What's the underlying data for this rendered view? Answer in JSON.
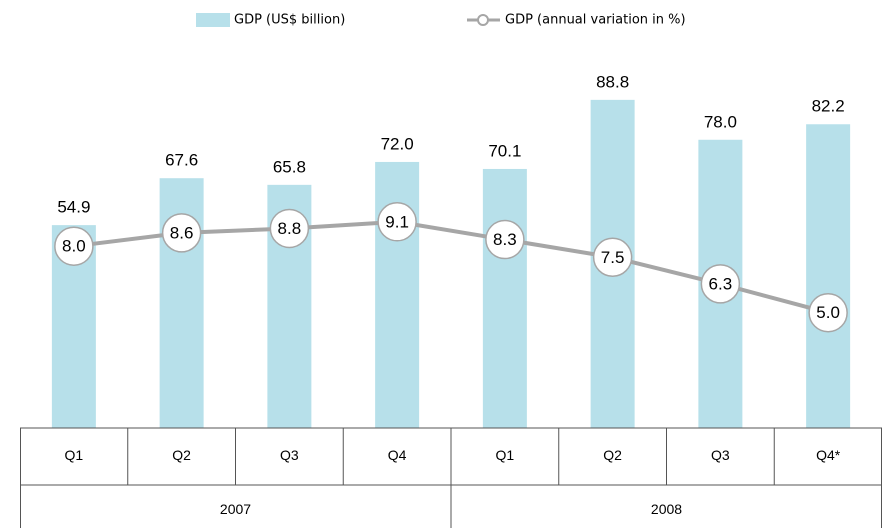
{
  "chart_data": {
    "type": "bar_line",
    "groups": [
      {
        "name": "2007",
        "categories": [
          "Q1",
          "Q2",
          "Q3",
          "Q4"
        ]
      },
      {
        "name": "2008",
        "categories": [
          "Q1",
          "Q2",
          "Q3",
          "Q4*"
        ]
      }
    ],
    "series": [
      {
        "name": "GDP (US$ billion)",
        "type": "bar",
        "color": "#b7e0ea",
        "values": [
          54.9,
          67.6,
          65.8,
          72.0,
          70.1,
          88.8,
          78.0,
          82.2
        ],
        "value_labels": [
          "54.9",
          "67.6",
          "65.8",
          "72.0",
          "70.1",
          "88.8",
          "78.0",
          "82.2"
        ]
      },
      {
        "name": "GDP (annual variation in %)",
        "type": "line",
        "axis": "y2",
        "color": "#a6a6a6",
        "values": [
          8.0,
          8.6,
          8.8,
          9.1,
          8.3,
          7.5,
          6.3,
          5.0
        ],
        "value_labels": [
          "8.0",
          "8.6",
          "8.8",
          "9.1",
          "8.3",
          "7.5",
          "6.3",
          "5.0"
        ]
      }
    ],
    "ylim": [
      0,
      105
    ],
    "y2lim": [
      -0.2,
      17.3
    ]
  }
}
